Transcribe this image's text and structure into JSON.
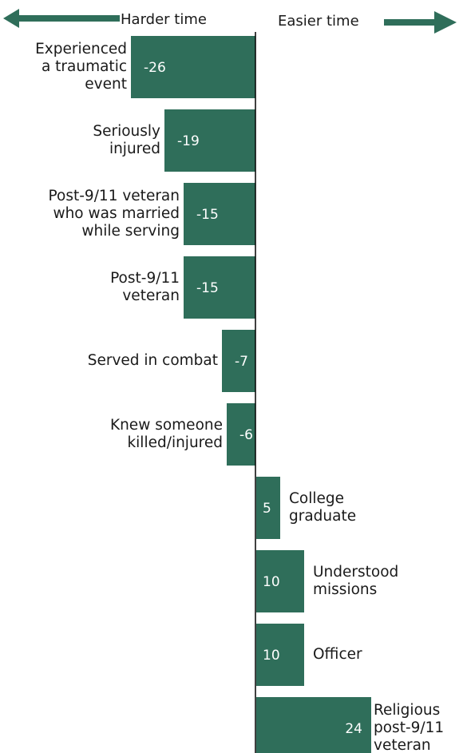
{
  "header": {
    "harder_label": "Harder time",
    "easier_label": "Easier time"
  },
  "colors": {
    "bar": "#2f6e5a",
    "value_text": "#ffffff",
    "axis": "#000000",
    "text": "#1a1a1a"
  },
  "chart_data": {
    "type": "bar",
    "orientation": "horizontal",
    "categories": [
      [
        "Experienced",
        "a traumatic",
        "event"
      ],
      [
        "Seriously",
        "injured"
      ],
      [
        "Post-9/11 veteran",
        "who was married",
        "while serving"
      ],
      [
        "Post-9/11",
        "veteran"
      ],
      [
        "Served in combat"
      ],
      [
        "Knew someone",
        "killed/injured"
      ],
      [
        "College",
        "graduate"
      ],
      [
        "Understood",
        "missions"
      ],
      [
        "Officer"
      ],
      [
        "Religious",
        "post-9/11",
        "veteran"
      ]
    ],
    "values": [
      -26,
      -19,
      -15,
      -15,
      -7,
      -6,
      5,
      10,
      10,
      24
    ],
    "value_labels": [
      "-26",
      "-19",
      "-15",
      "-15",
      "-7",
      "-6",
      "5",
      "10",
      "10",
      "24"
    ],
    "xlim": [
      -26,
      24
    ]
  }
}
